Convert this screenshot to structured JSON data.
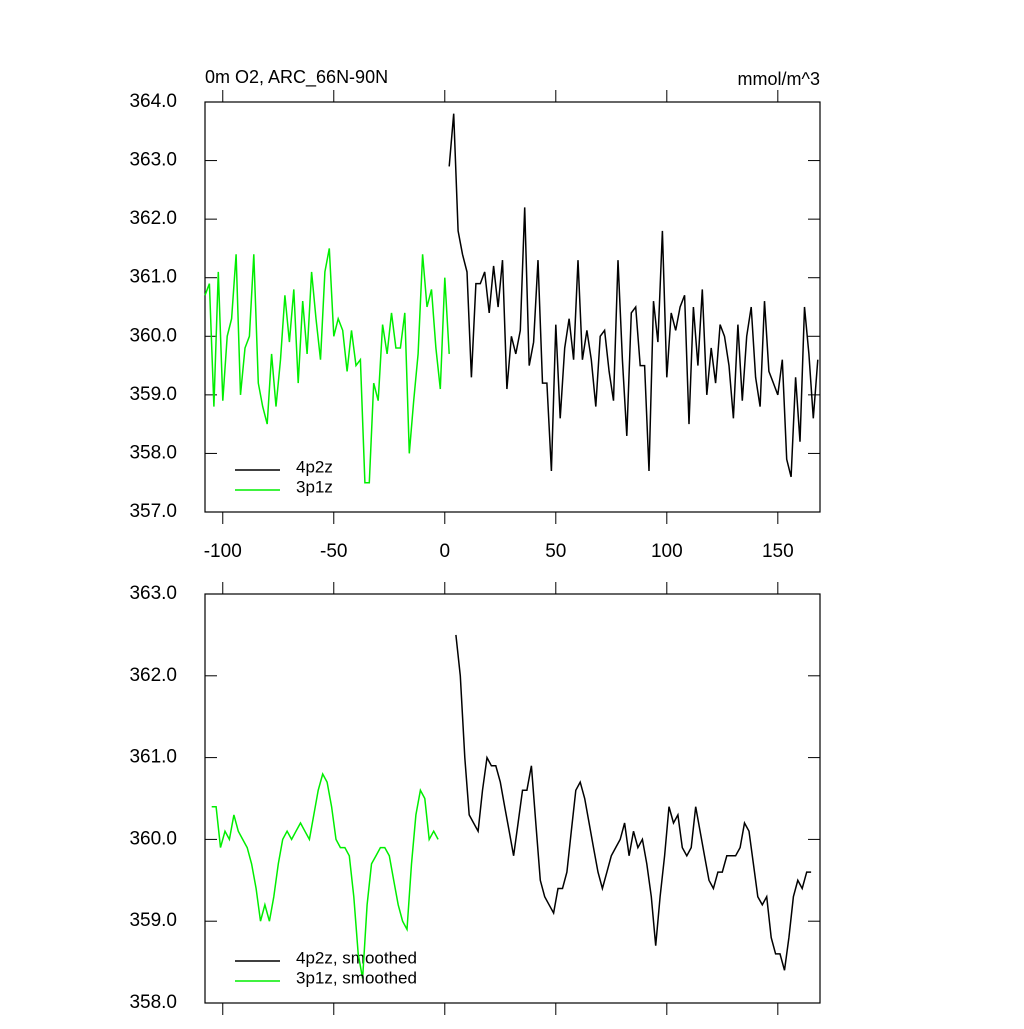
{
  "chart_data": [
    {
      "type": "line",
      "title": "0m O2, ARC_66N-90N",
      "units": "mmol/m^3",
      "xlim": [
        -108,
        169
      ],
      "ylim": [
        357,
        364
      ],
      "xticks": [
        -100,
        -50,
        0,
        50,
        100,
        150
      ],
      "yticks": [
        {
          "value": 357,
          "label": "357.0"
        },
        {
          "value": 358,
          "label": "358.0"
        },
        {
          "value": 359,
          "label": "359.0"
        },
        {
          "value": 360,
          "label": "360.0"
        },
        {
          "value": 361,
          "label": "361.0"
        },
        {
          "value": 362,
          "label": "362.0"
        },
        {
          "value": 363,
          "label": "363.0"
        },
        {
          "value": 364,
          "label": "364.0"
        }
      ],
      "legend": "lower left",
      "series": [
        {
          "name": "4p2z",
          "color": "#000000",
          "x": [
            2,
            4,
            6,
            8,
            10,
            12,
            14,
            16,
            18,
            20,
            22,
            24,
            26,
            28,
            30,
            32,
            34,
            36,
            38,
            40,
            42,
            44,
            46,
            48,
            50,
            52,
            54,
            56,
            58,
            60,
            62,
            64,
            66,
            68,
            70,
            72,
            74,
            76,
            78,
            80,
            82,
            84,
            86,
            88,
            90,
            92,
            94,
            96,
            98,
            100,
            102,
            104,
            106,
            108,
            110,
            112,
            114,
            116,
            118,
            120,
            122,
            124,
            126,
            128,
            130,
            132,
            134,
            136,
            138,
            140,
            142,
            144,
            146,
            148,
            150,
            152,
            154,
            156,
            158,
            160,
            162,
            164,
            166,
            168
          ],
          "values": [
            362.9,
            363.8,
            361.8,
            361.4,
            361.1,
            359.3,
            360.9,
            360.9,
            361.1,
            360.4,
            361.2,
            360.5,
            361.3,
            359.1,
            360.0,
            359.7,
            360.1,
            362.2,
            359.5,
            359.9,
            361.3,
            359.2,
            359.2,
            357.7,
            360.2,
            358.6,
            359.8,
            360.3,
            359.6,
            361.3,
            359.6,
            360.1,
            359.6,
            358.8,
            360.0,
            360.1,
            359.4,
            358.9,
            361.3,
            359.6,
            358.3,
            360.4,
            360.5,
            359.5,
            359.5,
            357.7,
            360.6,
            359.9,
            361.8,
            359.3,
            360.4,
            360.1,
            360.5,
            360.7,
            358.5,
            360.5,
            359.5,
            360.8,
            359.0,
            359.8,
            359.2,
            360.2,
            360.0,
            359.5,
            358.6,
            360.2,
            358.9,
            360.0,
            360.5,
            359.3,
            358.8,
            360.6,
            359.4,
            359.2,
            359.0,
            359.6,
            357.9,
            357.6,
            359.3,
            358.2,
            360.5,
            359.7,
            358.6,
            359.6
          ]
        },
        {
          "name": "3p1z",
          "color": "#00ee00",
          "x": [
            -108,
            -106,
            -104,
            -102,
            -100,
            -98,
            -96,
            -94,
            -92,
            -90,
            -88,
            -86,
            -84,
            -82,
            -80,
            -78,
            -76,
            -74,
            -72,
            -70,
            -68,
            -66,
            -64,
            -62,
            -60,
            -58,
            -56,
            -54,
            -52,
            -50,
            -48,
            -46,
            -44,
            -42,
            -40,
            -38,
            -36,
            -34,
            -32,
            -30,
            -28,
            -26,
            -24,
            -22,
            -20,
            -18,
            -16,
            -14,
            -12,
            -10,
            -8,
            -6,
            -4,
            -2,
            0,
            2
          ],
          "values": [
            360.7,
            360.9,
            358.8,
            361.1,
            358.9,
            360.0,
            360.3,
            361.4,
            359.0,
            359.8,
            360.0,
            361.4,
            359.2,
            358.8,
            358.5,
            359.7,
            358.8,
            359.6,
            360.7,
            359.9,
            360.8,
            359.2,
            360.6,
            359.7,
            361.1,
            360.3,
            359.6,
            361.1,
            361.5,
            360.0,
            360.3,
            360.1,
            359.4,
            360.1,
            359.5,
            359.6,
            357.5,
            357.5,
            359.2,
            358.9,
            360.2,
            359.7,
            360.4,
            359.8,
            359.8,
            360.4,
            358.0,
            358.9,
            359.7,
            361.4,
            360.5,
            360.8,
            359.8,
            359.1,
            361.0,
            359.7
          ]
        }
      ]
    },
    {
      "type": "line",
      "xlim": [
        -108,
        169
      ],
      "ylim": [
        358,
        363
      ],
      "yticks": [
        {
          "value": 358,
          "label": "358.0"
        },
        {
          "value": 359,
          "label": "359.0"
        },
        {
          "value": 360,
          "label": "360.0"
        },
        {
          "value": 361,
          "label": "361.0"
        },
        {
          "value": 362,
          "label": "362.0"
        },
        {
          "value": 363,
          "label": "363.0"
        }
      ],
      "legend": "lower left",
      "series": [
        {
          "name": "4p2z, smoothed",
          "color": "#000000",
          "x": [
            5,
            7,
            9,
            11,
            13,
            15,
            17,
            19,
            21,
            23,
            25,
            27,
            29,
            31,
            33,
            35,
            37,
            39,
            41,
            43,
            45,
            47,
            49,
            51,
            53,
            55,
            57,
            59,
            61,
            63,
            65,
            67,
            69,
            71,
            73,
            75,
            77,
            79,
            81,
            83,
            85,
            87,
            89,
            91,
            93,
            95,
            97,
            99,
            101,
            103,
            105,
            107,
            109,
            111,
            113,
            115,
            117,
            119,
            121,
            123,
            125,
            127,
            129,
            131,
            133,
            135,
            137,
            139,
            141,
            143,
            145,
            147,
            149,
            151,
            153,
            155,
            157,
            159,
            161,
            163,
            165
          ],
          "values": [
            362.5,
            362.0,
            361.0,
            360.3,
            360.2,
            360.1,
            360.6,
            361.0,
            360.9,
            360.9,
            360.7,
            360.4,
            360.1,
            359.8,
            360.2,
            360.6,
            360.6,
            360.9,
            360.2,
            359.5,
            359.3,
            359.2,
            359.1,
            359.4,
            359.4,
            359.6,
            360.1,
            360.6,
            360.7,
            360.5,
            360.2,
            359.9,
            359.6,
            359.4,
            359.6,
            359.8,
            359.9,
            360.0,
            360.2,
            359.8,
            360.1,
            359.9,
            360.0,
            359.7,
            359.3,
            358.7,
            359.3,
            359.8,
            360.4,
            360.2,
            360.3,
            359.9,
            359.8,
            359.9,
            360.4,
            360.1,
            359.8,
            359.5,
            359.4,
            359.6,
            359.6,
            359.8,
            359.8,
            359.8,
            359.9,
            360.2,
            360.1,
            359.7,
            359.3,
            359.2,
            359.3,
            358.8,
            358.6,
            358.6,
            358.4,
            358.8,
            359.3,
            359.5,
            359.4,
            359.6,
            359.6
          ]
        },
        {
          "name": "3p1z, smoothed",
          "color": "#00ee00",
          "x": [
            -105,
            -103,
            -101,
            -99,
            -97,
            -95,
            -93,
            -91,
            -89,
            -87,
            -85,
            -83,
            -81,
            -79,
            -77,
            -75,
            -73,
            -71,
            -69,
            -67,
            -65,
            -63,
            -61,
            -59,
            -57,
            -55,
            -53,
            -51,
            -49,
            -47,
            -45,
            -43,
            -41,
            -39,
            -37,
            -35,
            -33,
            -31,
            -29,
            -27,
            -25,
            -23,
            -21,
            -19,
            -17,
            -15,
            -13,
            -11,
            -9,
            -7,
            -5,
            -3
          ],
          "values": [
            360.4,
            360.4,
            359.9,
            360.1,
            360.0,
            360.3,
            360.1,
            360.0,
            359.9,
            359.7,
            359.4,
            359.0,
            359.2,
            359.0,
            359.3,
            359.7,
            360.0,
            360.1,
            360.0,
            360.1,
            360.2,
            360.1,
            360.0,
            360.3,
            360.6,
            360.8,
            360.7,
            360.4,
            360.0,
            359.9,
            359.9,
            359.8,
            359.3,
            358.6,
            358.3,
            359.2,
            359.7,
            359.8,
            359.9,
            359.9,
            359.8,
            359.5,
            359.2,
            359.0,
            358.9,
            359.7,
            360.3,
            360.6,
            360.5,
            360.0,
            360.1,
            360.0
          ]
        }
      ]
    }
  ]
}
